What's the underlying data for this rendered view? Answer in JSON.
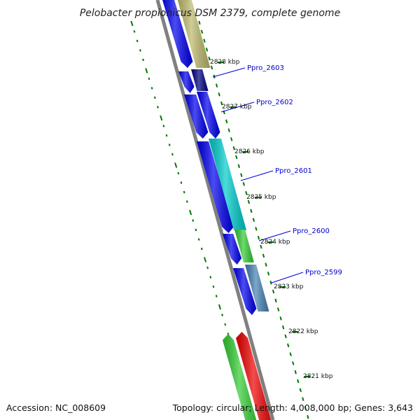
{
  "title": "Pelobacter propionicus DSM 2379, complete genome",
  "footer": {
    "accession": "Accession: NC_008609",
    "summary": "Topology: circular; Length: 4,008,000 bp; Genes: 3,643"
  },
  "scale_labels": [
    "2828 kbp",
    "2827 kbp",
    "2826 kbp",
    "2825 kbp",
    "2824 kbp",
    "2823 kbp",
    "2822 kbp",
    "2821 kbp"
  ],
  "gene_labels": [
    "Ppro_2603",
    "Ppro_2602",
    "Ppro_2601",
    "Ppro_2600",
    "Ppro_2599"
  ],
  "colors": {
    "backbone": "#808080",
    "ticks": "#007700",
    "cds_blue": "#0000ee",
    "navy": "#000080",
    "khaki": "#bdb76b",
    "cyan": "#00cccc",
    "green": "#33cc33",
    "steelblue": "#4682b4",
    "red": "#ee0000"
  }
}
